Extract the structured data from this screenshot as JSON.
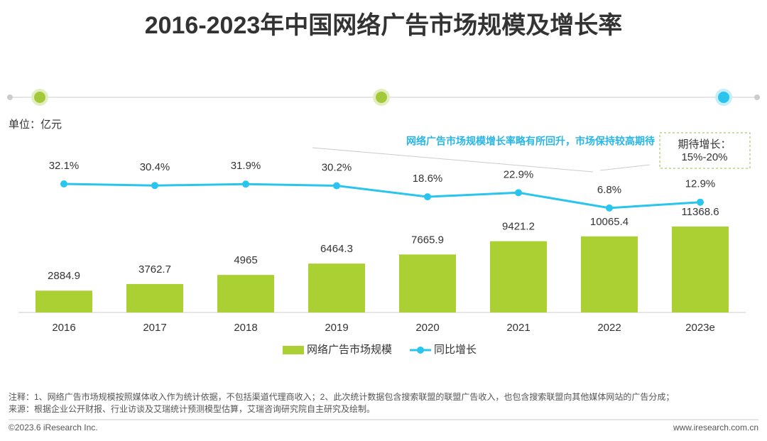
{
  "chart_data": {
    "type": "bar",
    "title": "2016-2023年中国网络广告市场规模及增长率",
    "unit": "单位：亿元",
    "annotation": "网络广告市场规模增长率略有所回升，市场保持较高期待",
    "expectation": {
      "title": "期待增长：",
      "value": "15%-20%"
    },
    "categories": [
      "2016",
      "2017",
      "2018",
      "2019",
      "2020",
      "2021",
      "2022",
      "2023e"
    ],
    "series": [
      {
        "name": "网络广告市场规模",
        "type": "bar",
        "color": "#abd033",
        "values": [
          2884.9,
          3762.7,
          4965,
          6464.3,
          7665.9,
          9421.2,
          10065.4,
          11368.6
        ]
      },
      {
        "name": "同比增长",
        "type": "line",
        "axis": "y2",
        "color": "#29c5ee",
        "values": [
          32.1,
          30.4,
          31.9,
          30.2,
          18.6,
          22.9,
          6.8,
          12.9
        ],
        "value_labels": [
          "32.1%",
          "30.4%",
          "31.9%",
          "30.2%",
          "18.6%",
          "22.9%",
          "6.8%",
          "12.9%"
        ]
      }
    ],
    "ylim": [
      0,
      40000
    ],
    "y2lim": [
      0,
      100
    ]
  },
  "notes": [
    "注释：1、网络广告市场规模按照媒体收入作为统计依据，不包括渠道代理商收入；2、此次统计数据包含搜索联盟的联盟广告收入，也包含搜索联盟向其他媒体网站的广告分成；",
    "来源：根据企业公开财报、行业访谈及艾瑞统计预测模型估算，艾瑞咨询研究院自主研究及绘制。"
  ],
  "footer": {
    "copyright": "©2023.6 iResearch Inc.",
    "url": "www.iresearch.com.cn"
  }
}
